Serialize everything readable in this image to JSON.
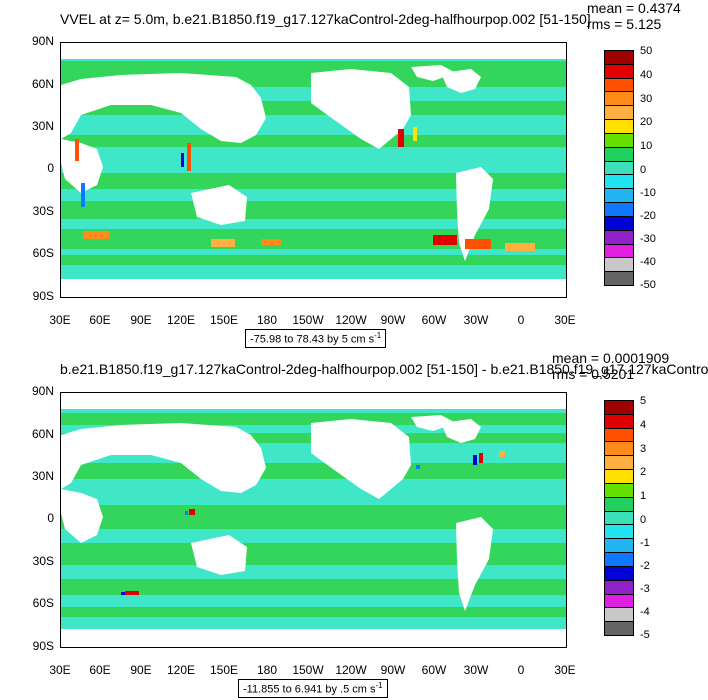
{
  "panels": [
    {
      "title": "VVEL at z=   5.0m, b.e21.B1850.f19_g17.127kaControl-2deg-halfhourpop.002 [51-150]",
      "mean_label": "mean = 0.4374",
      "rms_label": "rms = 5.125",
      "range_text": "-75.98 to 78.43 by 5 cm s",
      "range_exponent": "-1",
      "colorbar_labels": [
        "50",
        "40",
        "30",
        "20",
        "10",
        "0",
        "-10",
        "-20",
        "-30",
        "-40",
        "-50"
      ]
    },
    {
      "title": "b.e21.B1850.f19_g17.127kaControl-2deg-halfhourpop.002 [51-150] - b.e21.B1850.f19_g17.127kaContro",
      "mean_label": "mean = 0.0001909",
      "rms_label": "rms = 0.5201",
      "range_text": "-11.855 to 6.941 by .5 cm s",
      "range_exponent": "-1",
      "colorbar_labels": [
        "5",
        "4",
        "3",
        "2",
        "1",
        "0",
        "-1",
        "-2",
        "-3",
        "-4",
        "-5"
      ]
    }
  ],
  "lat_labels": [
    "90N",
    "60N",
    "30N",
    "0",
    "30S",
    "60S",
    "90S"
  ],
  "lon_labels": [
    "30E",
    "60E",
    "90E",
    "120E",
    "150E",
    "180",
    "150W",
    "120W",
    "90W",
    "60W",
    "30W",
    "0",
    "30E"
  ],
  "colormap": [
    "#a00000",
    "#e00000",
    "#ff5000",
    "#ff8c1a",
    "#ffb040",
    "#ffe000",
    "#64e000",
    "#22d060",
    "#3ce0b8",
    "#22e4f0",
    "#22b4f0",
    "#1078ff",
    "#0000d8",
    "#9020c8",
    "#e020e0",
    "#c8c8c8",
    "#646464"
  ],
  "ocean_colors": {
    "green": "#33d65a",
    "cyan": "#40e6c8",
    "land": "#ffffff"
  }
}
